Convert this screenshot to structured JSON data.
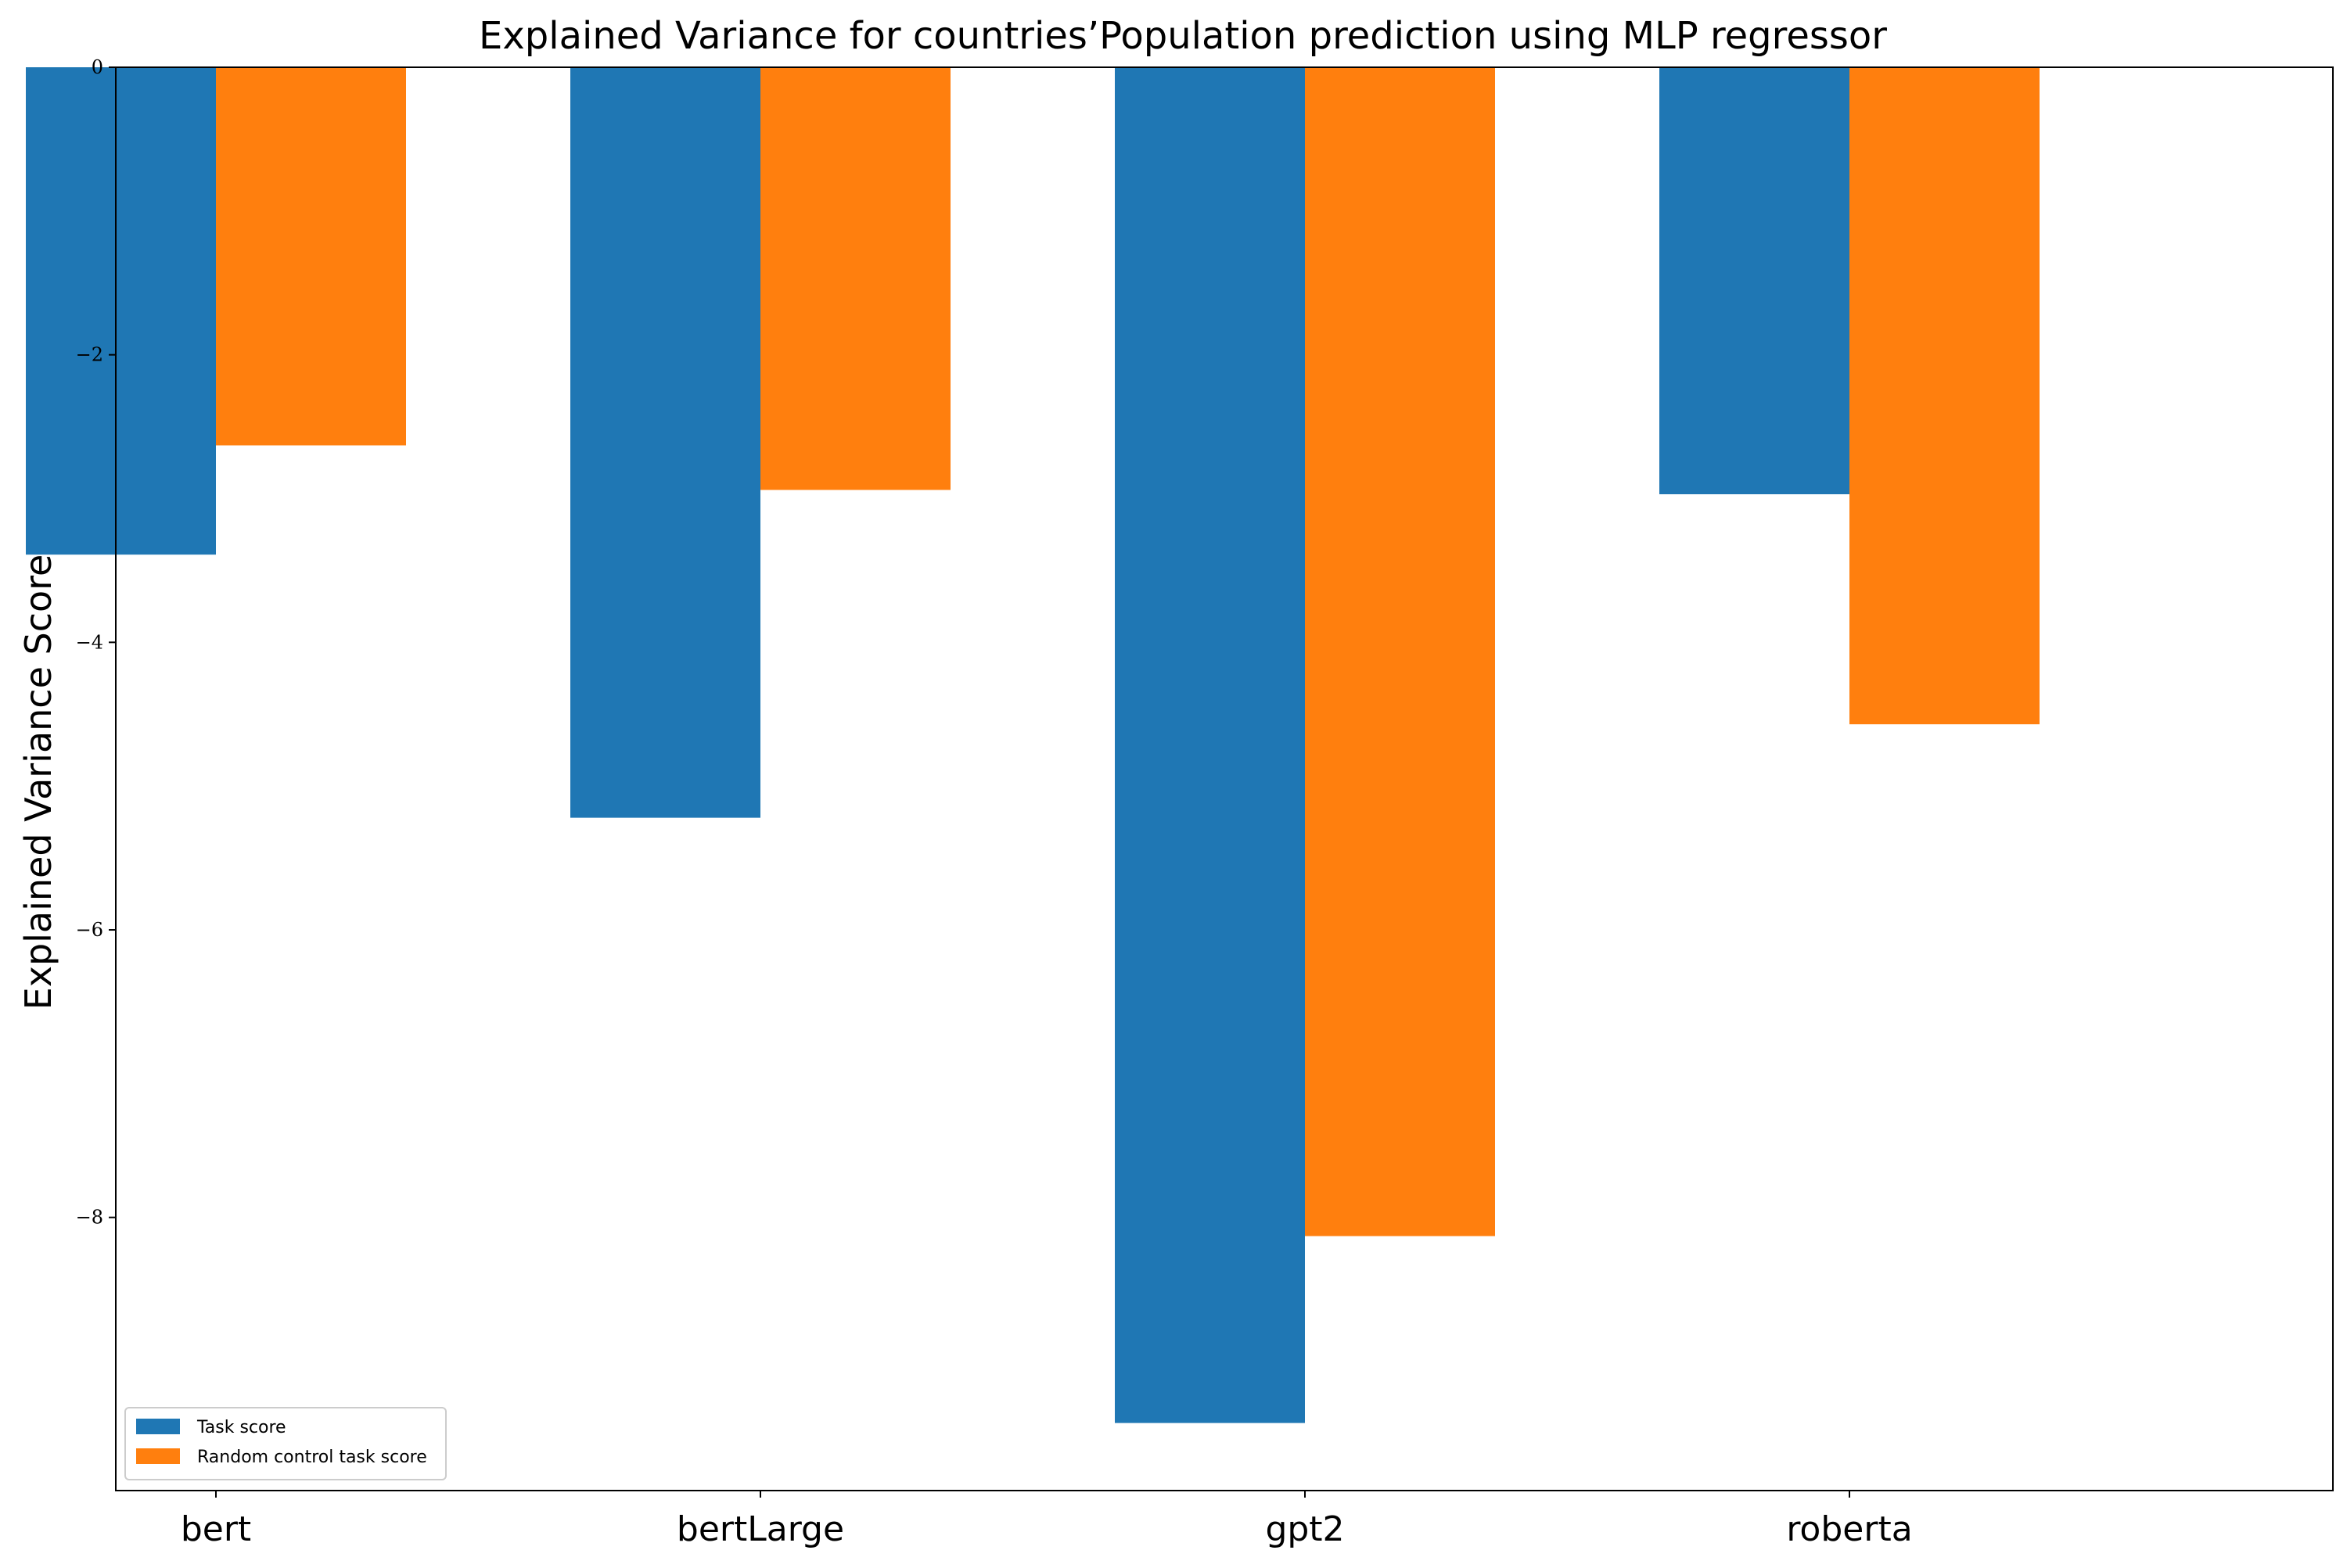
{
  "chart_data": {
    "type": "bar",
    "title": "Explained Variance for countries’Population prediction using MLP regressor",
    "xlabel": "",
    "ylabel": "Explained Variance Score",
    "categories": [
      "bert",
      "bertLarge",
      "gpt2",
      "roberta"
    ],
    "series": [
      {
        "name": "Task score",
        "color": "#1f77b4",
        "values": [
          -3.39,
          -5.22,
          -9.43,
          -2.97
        ]
      },
      {
        "name": "Random control task score",
        "color": "#ff7f0e",
        "values": [
          -2.63,
          -2.94,
          -8.13,
          -4.57
        ]
      }
    ],
    "ylim": [
      -9.9,
      0
    ],
    "yticks": [
      0,
      -2,
      -4,
      -6,
      -8
    ],
    "ytick_labels": [
      "0",
      "−2",
      "−4",
      "−6",
      "−8"
    ],
    "grid": false,
    "legend_position": "lower-left"
  }
}
